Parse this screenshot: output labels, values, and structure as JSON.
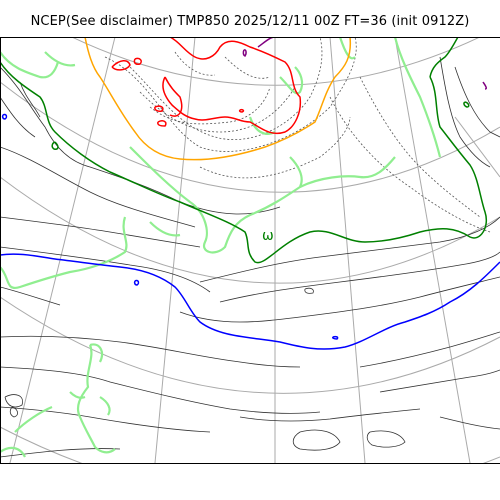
{
  "title": "NCEP(See disclaimer) TMP850 2025/12/11 00Z FT=36 (init 0912Z)",
  "map_label": "ω",
  "colors": {
    "graticule": "#aaaaaa",
    "isotherm_thin": "#333333",
    "isotherm_dotted": "#555555",
    "zero_deg": "#0000ff",
    "light_green": "#90ee90",
    "dark_green": "#008000",
    "orange": "#ffa500",
    "red": "#ff0000",
    "purple": "#800080"
  }
}
